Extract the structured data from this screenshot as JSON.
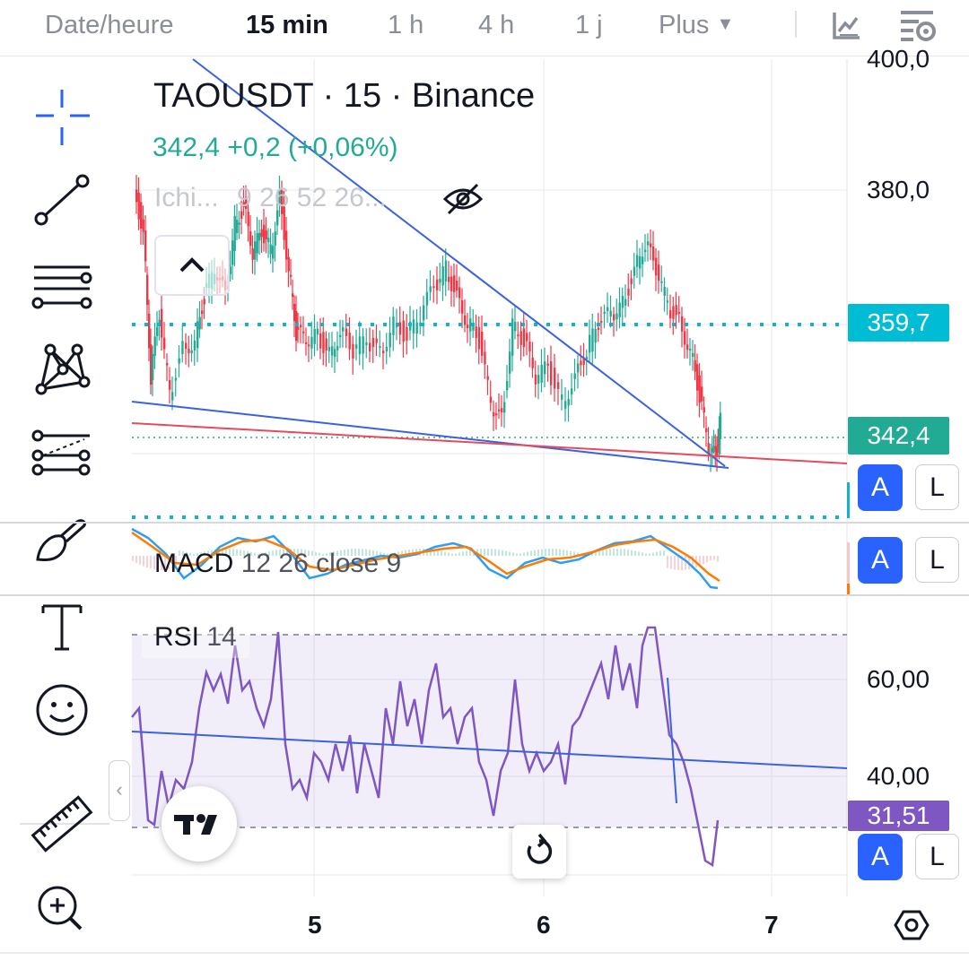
{
  "topbar": {
    "date_label": "Date/heure",
    "timeframes": [
      "15 min",
      "1 h",
      "4 h",
      "1 j"
    ],
    "active_timeframe": "15 min",
    "more_label": "Plus"
  },
  "toolbar": {
    "tools": [
      "crosshair-tool",
      "trend-line-tool",
      "fib-levels-tool",
      "pattern-tool",
      "prediction-tool",
      "brush-tool",
      "text-tool",
      "emoji-tool",
      "ruler-tool",
      "zoom-in-tool"
    ]
  },
  "legend": {
    "title": "TAOUSDT · 15 · Binance",
    "price_line": "342,4  +0,2 (+0,06%)",
    "ichimoku_name": "Ichi...",
    "ichimoku_params": "9 26 52 26..."
  },
  "axis": {
    "price_ticks": [
      "400,0",
      "380,0"
    ],
    "rsi_ticks": [
      "60,00",
      "40,00"
    ],
    "dates": [
      "5",
      "6",
      "7"
    ]
  },
  "price_tags": {
    "level_upper": "359,7",
    "current": "342,4",
    "rsi_current": "31,51"
  },
  "buttons": {
    "auto_label": "A",
    "log_label": "L"
  },
  "indicators": {
    "macd_name": "MACD",
    "macd_params": "12 26 close 9",
    "rsi_name": "RSI",
    "rsi_params": "14"
  },
  "colors": {
    "up": "#22ab94",
    "down": "#f23645",
    "trendline": "#3a62e0",
    "support_red": "#e64b5a",
    "dotted_level": "#14b3c9",
    "macd": "#2f9ef2",
    "signal": "#ff7a00",
    "rsi": "#7e57c2",
    "accent": "#2962ff"
  }
}
